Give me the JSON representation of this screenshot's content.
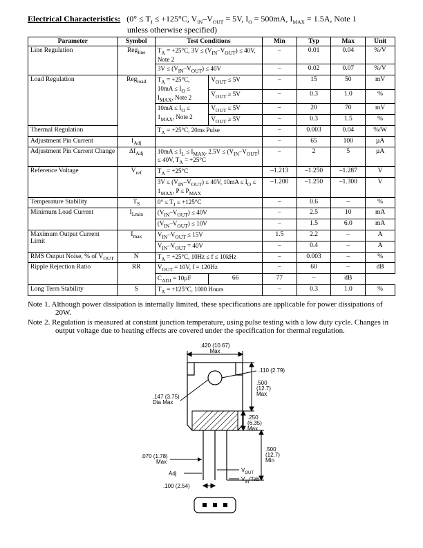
{
  "header": {
    "label": "Electrical Characteristics:",
    "conditions": "(0° ≤ T_J ≤ +125°C, V_IN–V_OUT = 5V, I_O = 500mA, I_MAX = 1.5A, Note 1 unless otherwise specified)"
  },
  "columns": [
    "Parameter",
    "Symbol",
    "Test Conditions",
    "Min",
    "Typ",
    "Max",
    "Unit"
  ],
  "rows": [
    {
      "param": "Line Regulation",
      "symbol": "Reg<sub>line</sub>",
      "cond": "T<sub>A</sub> = +25°C, 3V ≤ (V<sub>IN</sub>–V<sub>OUT</sub>) ≤ 40V, Note 2",
      "min": "–",
      "typ": "0.01",
      "max": "0.04",
      "unit": "%/V"
    },
    {
      "param": "",
      "symbol": "",
      "cond": "3V ≤ (V<sub>IN</sub>–V<sub>OUT</sub>) ≤ 40V",
      "min": "–",
      "typ": "0.02",
      "max": "0.07",
      "unit": "%/V"
    },
    {
      "param": "Load Regulation",
      "symbol": "Reg<sub>load</sub>",
      "cond": "T<sub>A</sub> = +25°C, 10mA ≤ I<sub>O</sub> ≤ I<sub>MAX</sub>, Note 2",
      "sub": "V<sub>OUT</sub> ≤ 5V",
      "min": "–",
      "typ": "15",
      "max": "50",
      "unit": "mV"
    },
    {
      "param": "",
      "symbol": "",
      "cond": "",
      "sub": "V<sub>OUT</sub> ≥ 5V",
      "min": "–",
      "typ": "0.3",
      "max": "1.0",
      "unit": "%"
    },
    {
      "param": "",
      "symbol": "",
      "cond": "10mA ≤ I<sub>O</sub> ≤ 1<sub>MAX</sub>, Note 2",
      "sub": "V<sub>OUT</sub> ≤ 5V",
      "min": "–",
      "typ": "20",
      "max": "70",
      "unit": "mV"
    },
    {
      "param": "",
      "symbol": "",
      "cond": "",
      "sub": "V<sub>OUT</sub> ≥ 5V",
      "min": "–",
      "typ": "0.3",
      "max": "1.5",
      "unit": "%"
    },
    {
      "param": "Thermal Regulation",
      "symbol": "",
      "cond": "T<sub>A</sub> = +25°C, 20ms Pulse",
      "min": "–",
      "typ": "0.003",
      "max": "0.04",
      "unit": "%/W"
    },
    {
      "param": "Adjustment Pin Current",
      "symbol": "I<sub>Adj</sub>",
      "cond": "",
      "min": "–",
      "typ": "65",
      "max": "100",
      "unit": "µA"
    },
    {
      "param": "Adjustment Pin Current Change",
      "symbol": "ΔI<sub>Adj</sub>",
      "cond": "10mA ≤ I<sub>L</sub> ≤ I<sub>MAX</sub>, 2.5V ≤ (V<sub>IN</sub>–V<sub>OUT</sub>) ≤ 40V, T<sub>A</sub> = +25°C",
      "min": "–",
      "typ": "2",
      "max": "5",
      "unit": "µA"
    },
    {
      "param": "Reference Voltage",
      "symbol": "V<sub>ref</sub>",
      "cond": "T<sub>A</sub> = +25°C",
      "min": "–1.213",
      "typ": "–1.250",
      "max": "–1.287",
      "unit": "V"
    },
    {
      "param": "",
      "symbol": "",
      "cond": "3V ≤ (V<sub>IN</sub>–V<sub>OUT</sub>) ≤ 40V, 10mA ≤ I<sub>O</sub> ≤ 1<sub>MAX</sub>, P ≤ P<sub>MAX</sub>",
      "min": "–1.200",
      "typ": "–1.250",
      "max": "–1.300",
      "unit": "V"
    },
    {
      "param": "Temperature Stability",
      "symbol": "T<sub>S</sub>",
      "cond": "0° ≤ T<sub>J</sub> ≤ +125°C",
      "min": "–",
      "typ": "0.6",
      "max": "–",
      "unit": "%"
    },
    {
      "param": "Minimum Load Current",
      "symbol": "I<sub>Lmin</sub>",
      "cond": "(V<sub>IN</sub>–V<sub>OUT</sub>) ≤ 40V",
      "min": "–",
      "typ": "2.5",
      "max": "10",
      "unit": "mA"
    },
    {
      "param": "",
      "symbol": "",
      "cond": "(V<sub>IN</sub>–V<sub>OUT</sub>) ≤ 10V",
      "min": "–",
      "typ": "1.5",
      "max": "6.0",
      "unit": "mA"
    },
    {
      "param": "Maximum Output Current Limit",
      "symbol": "I<sub>max</sub>",
      "cond": "V<sub>IN</sub>–V<sub>OUT</sub> ≤ 15V",
      "min": "1.5",
      "typ": "2.2",
      "max": "–",
      "unit": "A"
    },
    {
      "param": "",
      "symbol": "",
      "cond": "V<sub>IN</sub>–V<sub>OUT</sub> = 40V",
      "min": "–",
      "typ": "0.4",
      "max": "–",
      "unit": "A"
    },
    {
      "param": "RMS Output Noise, % of V<sub>OUT</sub>",
      "symbol": "N",
      "cond": "T<sub>A</sub> = +25°C, 10Hz ≤ f ≤ 10kHz",
      "min": "–",
      "typ": "0.003",
      "max": "–",
      "unit": "%"
    },
    {
      "param": "Ripple Rejection Ratio",
      "symbol": "RR",
      "cond": "V<sub>OUT</sub> = 10V, f = 120Hz",
      "min": "–",
      "typ": "60",
      "max": "–",
      "unit": "dB"
    },
    {
      "param": "",
      "symbol": "",
      "cond": "",
      "sub": "C<sub>ADJ</sub> = 10µF",
      "min": "66",
      "typ": "77",
      "max": "–",
      "unit": "dB"
    },
    {
      "param": "Long Term Stability",
      "symbol": "S",
      "cond": "T<sub>A</sub> = +125°C, 1000 Hours",
      "min": "–",
      "typ": "0.3",
      "max": "1.0",
      "unit": "%"
    }
  ],
  "notes": [
    "Note  1. Although power dissipation is internally limited, these specifications are applicable for power dissipations of 20W.",
    "Note  2. Regulation is measured at constant junction temperature, using pulse testing with a low duty cycle.  Changes in output voltage due to heating effects are covered under the specification for thermal regulation."
  ],
  "diagram": {
    "labels": {
      "width_top": ".420 (10.67) Max",
      "hole": ".110 (2.79)",
      "body_h": ".500 (12.7) Max",
      "dia": ".147 (3.75) Dia Max",
      "ledge": ".250 (6.35) Max",
      "lead_len": ".500 (12.7) Min",
      "lead_w": ".070 (1.78) Max",
      "pitch": ".100 (2.54)",
      "pin_adj": "Adj",
      "pin_vout": "VOUT",
      "pin_vin": "VIN/Tab"
    },
    "colors": {
      "stroke": "#000000",
      "fill": "#ffffff",
      "hatch": "#000000"
    }
  }
}
